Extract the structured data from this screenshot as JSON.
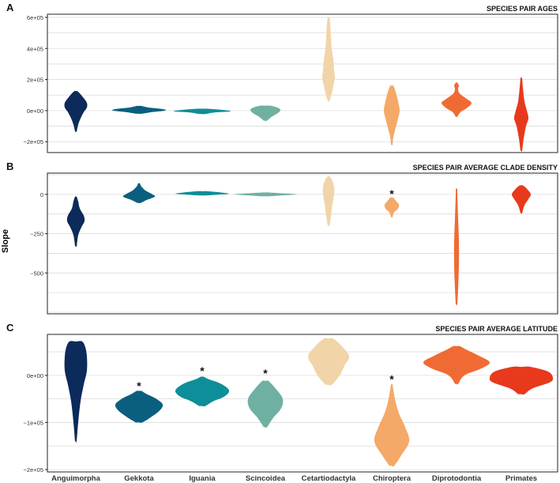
{
  "figure": {
    "ylabel": "Slope",
    "clades": [
      "Anguimorpha",
      "Gekkota",
      "Iguania",
      "Scincoidea",
      "Cetartiodactyla",
      "Chiroptera",
      "Diprotodontia",
      "Primates"
    ],
    "colors": [
      "#0c2a5a",
      "#0b5f7e",
      "#0e8e98",
      "#6fb0a3",
      "#f1d5a8",
      "#f4a968",
      "#f06b33",
      "#e8391c"
    ]
  },
  "chart_data": [
    {
      "type": "violin",
      "letter": "A",
      "title": "SPECIES PAIR AGES",
      "ylim": [
        -270000,
        620000
      ],
      "ticks": [
        600000,
        400000,
        200000,
        0,
        -200000
      ],
      "tick_labels": [
        "6e+05",
        "4e+05",
        "2e+05",
        "0e+00",
        "−2e+05"
      ],
      "gridlines": [
        600000,
        500000,
        400000,
        300000,
        200000,
        100000,
        0,
        -100000,
        -200000
      ],
      "violins": [
        {
          "name": "Anguimorpha",
          "profile": [
            [
              -135000,
              1
            ],
            [
              -90000,
              3
            ],
            [
              -50000,
              6
            ],
            [
              -10000,
              10
            ],
            [
              20000,
              14
            ],
            [
              50000,
              14
            ],
            [
              80000,
              10
            ],
            [
              105000,
              6
            ],
            [
              125000,
              2
            ]
          ]
        },
        {
          "name": "Gekkota",
          "profile": [
            [
              -20000,
              4
            ],
            [
              -10000,
              16
            ],
            [
              0,
              33
            ],
            [
              10000,
              30
            ],
            [
              20000,
              12
            ],
            [
              30000,
              3
            ]
          ]
        },
        {
          "name": "Iguania",
          "profile": [
            [
              -22000,
              4
            ],
            [
              -12000,
              16
            ],
            [
              -5000,
              36
            ],
            [
              5000,
              24
            ],
            [
              12000,
              6
            ]
          ]
        },
        {
          "name": "Scincoidea",
          "profile": [
            [
              -65000,
              2
            ],
            [
              -40000,
              8
            ],
            [
              -15000,
              16
            ],
            [
              5000,
              19
            ],
            [
              20000,
              15
            ],
            [
              32000,
              6
            ]
          ]
        },
        {
          "name": "Cetartiodactyla",
          "profile": [
            [
              60000,
              1
            ],
            [
              110000,
              4
            ],
            [
              160000,
              6
            ],
            [
              210000,
              8
            ],
            [
              260000,
              7
            ],
            [
              330000,
              6
            ],
            [
              400000,
              4
            ],
            [
              480000,
              3
            ],
            [
              560000,
              2
            ],
            [
              600000,
              1
            ]
          ]
        },
        {
          "name": "Chiroptera",
          "profile": [
            [
              -220000,
              1
            ],
            [
              -170000,
              2
            ],
            [
              -110000,
              5
            ],
            [
              -50000,
              8
            ],
            [
              0,
              10
            ],
            [
              60000,
              8
            ],
            [
              120000,
              5
            ],
            [
              160000,
              2
            ]
          ]
        },
        {
          "name": "Diprotodontia",
          "profile": [
            [
              -40000,
              1
            ],
            [
              -10000,
              5
            ],
            [
              20000,
              14
            ],
            [
              50000,
              19
            ],
            [
              75000,
              13
            ],
            [
              110000,
              4
            ],
            [
              140000,
              2
            ],
            [
              160000,
              3
            ],
            [
              180000,
              1
            ]
          ]
        },
        {
          "name": "Primates",
          "profile": [
            [
              -260000,
              1
            ],
            [
              -180000,
              3
            ],
            [
              -100000,
              6
            ],
            [
              -50000,
              9
            ],
            [
              0,
              7
            ],
            [
              60000,
              4
            ],
            [
              150000,
              2
            ],
            [
              210000,
              1
            ]
          ]
        }
      ],
      "stars": []
    },
    {
      "type": "violin",
      "letter": "B",
      "title": "SPECIES PAIR AVERAGE CLADE DENSITY",
      "ylim": [
        -760,
        135
      ],
      "ticks": [
        0,
        -250,
        -500
      ],
      "tick_labels": [
        "0",
        "−250",
        "−500"
      ],
      "gridlines": [
        125,
        0,
        -125,
        -250,
        -375,
        -500,
        -625,
        -750
      ],
      "violins": [
        {
          "name": "Anguimorpha",
          "profile": [
            [
              -330,
              1
            ],
            [
              -260,
              3
            ],
            [
              -210,
              7
            ],
            [
              -170,
              11
            ],
            [
              -135,
              10
            ],
            [
              -90,
              5
            ],
            [
              -45,
              3
            ],
            [
              -15,
              1
            ]
          ]
        },
        {
          "name": "Gekkota",
          "profile": [
            [
              -55,
              2
            ],
            [
              -35,
              10
            ],
            [
              -15,
              20
            ],
            [
              0,
              17
            ],
            [
              25,
              8
            ],
            [
              50,
              3
            ],
            [
              70,
              1
            ]
          ]
        },
        {
          "name": "Iguania",
          "profile": [
            [
              -7,
              4
            ],
            [
              -2,
              20
            ],
            [
              4,
              34
            ],
            [
              12,
              24
            ],
            [
              20,
              6
            ]
          ]
        },
        {
          "name": "Scincoidea",
          "profile": [
            [
              -12,
              6
            ],
            [
              -6,
              24
            ],
            [
              0,
              40
            ],
            [
              6,
              24
            ],
            [
              12,
              4
            ]
          ]
        },
        {
          "name": "Cetartiodactyla",
          "profile": [
            [
              -200,
              1
            ],
            [
              -140,
              3
            ],
            [
              -60,
              5
            ],
            [
              0,
              7
            ],
            [
              50,
              7
            ],
            [
              95,
              4
            ],
            [
              115,
              1
            ]
          ]
        },
        {
          "name": "Chiroptera",
          "profile": [
            [
              -145,
              1
            ],
            [
              -115,
              3
            ],
            [
              -90,
              8
            ],
            [
              -65,
              9
            ],
            [
              -40,
              5
            ],
            [
              -20,
              2
            ]
          ]
        },
        {
          "name": "Diprotodontia",
          "profile": [
            [
              -700,
              1
            ],
            [
              -600,
              2
            ],
            [
              -450,
              3
            ],
            [
              -300,
              3
            ],
            [
              -150,
              2
            ],
            [
              0,
              1
            ],
            [
              35,
              1
            ]
          ]
        },
        {
          "name": "Primates",
          "profile": [
            [
              -120,
              1
            ],
            [
              -70,
              4
            ],
            [
              -30,
              9
            ],
            [
              0,
              12
            ],
            [
              30,
              8
            ],
            [
              50,
              4
            ],
            [
              58,
              1
            ]
          ]
        }
      ],
      "stars": [
        {
          "name": "Chiroptera",
          "symbol": "*",
          "y": 5
        }
      ]
    },
    {
      "type": "violin",
      "letter": "C",
      "title": "SPECIES PAIR AVERAGE LATITUDE",
      "ylim": [
        -205000,
        87000
      ],
      "ticks": [
        0,
        -100000,
        -200000
      ],
      "tick_labels": [
        "0e+00",
        "−1e+05",
        "−2e+05"
      ],
      "gridlines": [
        50000,
        0,
        -50000,
        -100000,
        -150000,
        -200000
      ],
      "violins": [
        {
          "name": "Anguimorpha",
          "profile": [
            [
              -140000,
              1
            ],
            [
              -100000,
              3
            ],
            [
              -55000,
              6
            ],
            [
              -20000,
              10
            ],
            [
              10000,
              14
            ],
            [
              40000,
              14
            ],
            [
              60000,
              12
            ],
            [
              72000,
              8
            ]
          ]
        },
        {
          "name": "Gekkota",
          "profile": [
            [
              -100000,
              4
            ],
            [
              -90000,
              14
            ],
            [
              -75000,
              26
            ],
            [
              -62000,
              30
            ],
            [
              -50000,
              22
            ],
            [
              -40000,
              10
            ],
            [
              -33000,
              3
            ]
          ]
        },
        {
          "name": "Iguania",
          "profile": [
            [
              -65000,
              4
            ],
            [
              -55000,
              14
            ],
            [
              -45000,
              28
            ],
            [
              -32000,
              34
            ],
            [
              -18000,
              24
            ],
            [
              -8000,
              8
            ],
            [
              -3000,
              2
            ]
          ]
        },
        {
          "name": "Scincoidea",
          "profile": [
            [
              -110000,
              2
            ],
            [
              -90000,
              10
            ],
            [
              -70000,
              20
            ],
            [
              -50000,
              22
            ],
            [
              -30000,
              14
            ],
            [
              -12000,
              4
            ]
          ]
        },
        {
          "name": "Cetartiodactyla",
          "profile": [
            [
              -20000,
              4
            ],
            [
              0,
              14
            ],
            [
              20000,
              20
            ],
            [
              40000,
              26
            ],
            [
              60000,
              18
            ],
            [
              78000,
              6
            ]
          ]
        },
        {
          "name": "Chiroptera",
          "profile": [
            [
              -192000,
              3
            ],
            [
              -170000,
              12
            ],
            [
              -140000,
              22
            ],
            [
              -110000,
              17
            ],
            [
              -80000,
              9
            ],
            [
              -50000,
              4
            ],
            [
              -20000,
              1
            ]
          ]
        },
        {
          "name": "Diprotodontia",
          "profile": [
            [
              -18000,
              2
            ],
            [
              0,
              10
            ],
            [
              15000,
              32
            ],
            [
              28000,
              42
            ],
            [
              42000,
              28
            ],
            [
              55000,
              12
            ],
            [
              62000,
              4
            ]
          ]
        },
        {
          "name": "Primates",
          "profile": [
            [
              -40000,
              4
            ],
            [
              -28000,
              14
            ],
            [
              -15000,
              36
            ],
            [
              -5000,
              40
            ],
            [
              8000,
              34
            ],
            [
              18000,
              12
            ]
          ]
        }
      ],
      "stars": [
        {
          "name": "Gekkota",
          "symbol": "*",
          "y": -22000
        },
        {
          "name": "Iguania",
          "symbol": "*",
          "y": 10000
        },
        {
          "name": "Scincoidea",
          "symbol": "*",
          "y": 5000
        },
        {
          "name": "Chiroptera",
          "symbol": "*",
          "y": -8000
        }
      ]
    }
  ]
}
